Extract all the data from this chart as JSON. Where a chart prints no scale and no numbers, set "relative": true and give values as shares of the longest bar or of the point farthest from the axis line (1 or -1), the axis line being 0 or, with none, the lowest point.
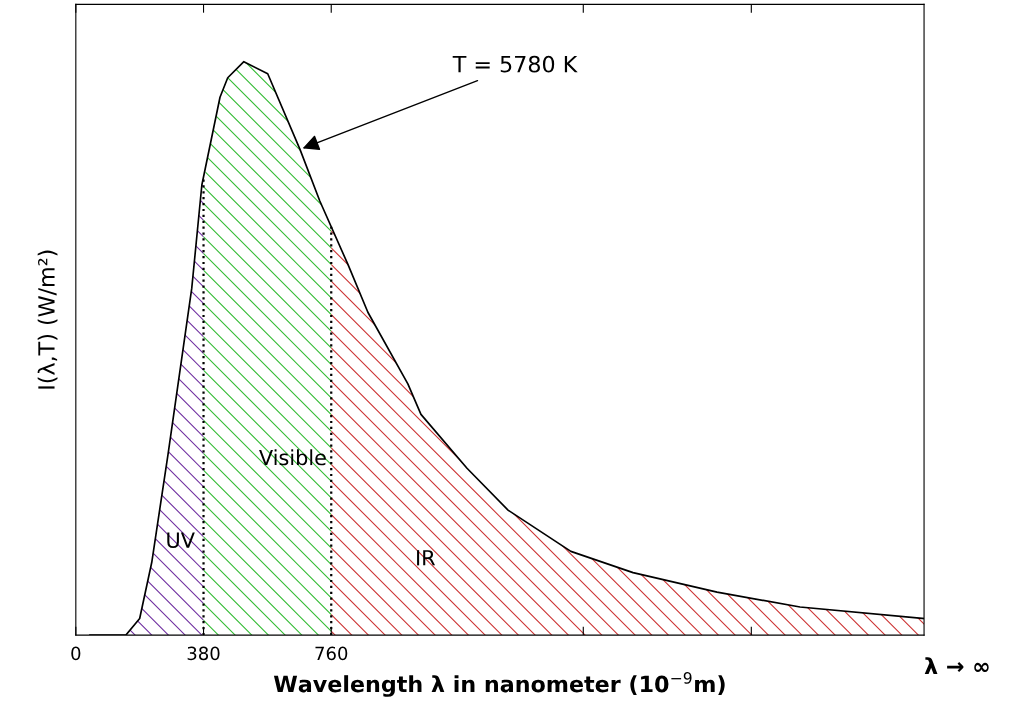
{
  "chart_data": {
    "type": "line",
    "relative": true,
    "xlabel": "Wavelength λ in nanometer (10$^{−9}$m)",
    "ylabel": "I(λ,T) (W/m²)",
    "xlim": [
      0,
      2524
    ],
    "xticks": [
      0,
      380,
      760,
      {
        "value": 1510,
        "label": null
      },
      {
        "value": 2010,
        "label": null
      }
    ],
    "tick_labels": "x",
    "grid": false,
    "series": [
      {
        "color": "#000000",
        "x": [
          42,
          149,
          190,
          226,
          274,
          345,
          375,
          429,
          452,
          500,
          571,
          667,
          726,
          810,
          869,
          988,
          1027,
          1164,
          1286,
          1473,
          1658,
          1908,
          2155,
          2524
        ],
        "values": [
          0,
          0,
          0.029,
          0.127,
          0.314,
          0.605,
          0.785,
          0.938,
          0.972,
          1.0,
          0.979,
          0.847,
          0.757,
          0.646,
          0.563,
          0.438,
          0.385,
          0.291,
          0.218,
          0.146,
          0.109,
          0.075,
          0.049,
          0.029
        ]
      },
      {
        "type": "area",
        "name": "UV",
        "color": "#7030a0",
        "x": [
          149,
          190,
          226,
          274,
          345,
          375,
          380
        ],
        "values": [
          0,
          0.029,
          0.127,
          0.314,
          0.605,
          0.785,
          0.79
        ]
      },
      {
        "type": "area",
        "name": "Visible",
        "color": "#33bb33",
        "x": [
          380,
          429,
          452,
          500,
          571,
          667,
          726,
          760
        ],
        "values": [
          0.79,
          0.938,
          0.972,
          1.0,
          0.979,
          0.847,
          0.757,
          0.71
        ]
      },
      {
        "type": "area",
        "name": "IR",
        "color": "#cc3333",
        "x": [
          760,
          810,
          869,
          988,
          1027,
          1164,
          1286,
          1473,
          1658,
          1908,
          2155,
          2524
        ],
        "values": [
          0.71,
          0.646,
          0.563,
          0.438,
          0.385,
          0.291,
          0.218,
          0.146,
          0.109,
          0.075,
          0.049,
          0.029
        ]
      }
    ],
    "ref_lines": [
      {
        "axis": "x",
        "value": 380,
        "line_style": "dotted",
        "color": "#000000"
      },
      {
        "axis": "x",
        "value": 760,
        "line_style": "dotted",
        "color": "#000000"
      }
    ],
    "annotations": [
      {
        "text": "T = 5780 K",
        "x": 667,
        "y": 0.847
      },
      "λ → ∞"
    ]
  }
}
